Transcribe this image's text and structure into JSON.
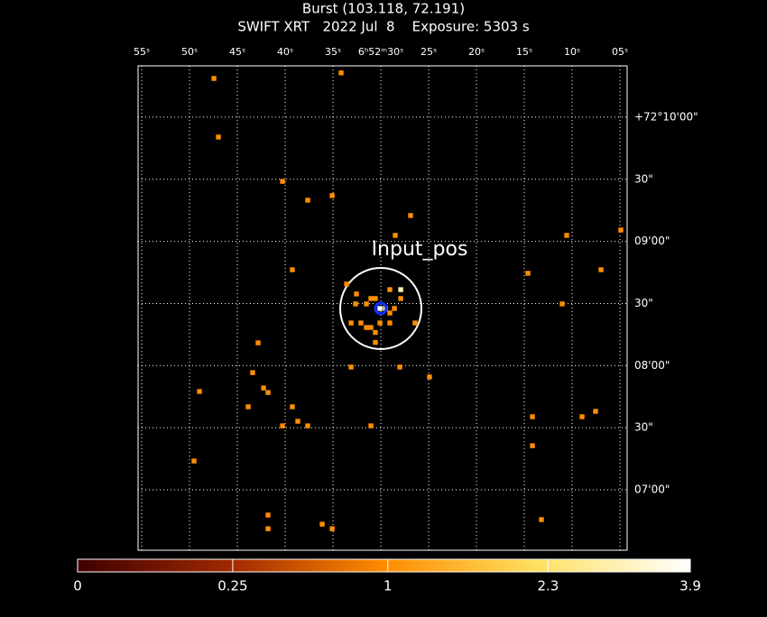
{
  "chart_data": {
    "type": "sky",
    "title": "Burst (103.118, 72.191)",
    "subtitle": "SWIFT XRT   2022 Jul  8    Exposure: 5303 s",
    "annotation": "Input_pos",
    "xlim": [
      55.38,
      4.25
    ],
    "ylim": [
      390.8,
      624.8
    ],
    "xticks": [
      {
        "value": 55,
        "label": "55ˢ"
      },
      {
        "value": 50,
        "label": "50ˢ"
      },
      {
        "value": 45,
        "label": "45ˢ"
      },
      {
        "value": 40,
        "label": "40ˢ"
      },
      {
        "value": 35,
        "label": "35ˢ"
      },
      {
        "value": 30,
        "label": "6ʰ52ᵐ30ˢ"
      },
      {
        "value": 25,
        "label": "25ˢ"
      },
      {
        "value": 20,
        "label": "20ˢ"
      },
      {
        "value": 15,
        "label": "15ˢ"
      },
      {
        "value": 10,
        "label": "10ˢ"
      },
      {
        "value": 5,
        "label": "05ˢ"
      }
    ],
    "yticks": [
      {
        "value": 600,
        "label": "+72°10'00\""
      },
      {
        "value": 570,
        "label": "30\""
      },
      {
        "value": 540,
        "label": "09'00\""
      },
      {
        "value": 510,
        "label": "30\""
      },
      {
        "value": 480,
        "label": "08'00\""
      },
      {
        "value": 450,
        "label": "30\""
      },
      {
        "value": 420,
        "label": "07'00\""
      }
    ],
    "grid": true,
    "x": [
      47.45,
      34.15,
      46.98,
      40.28,
      37.64,
      35.09,
      26.89,
      28.49,
      10.57,
      4.91,
      39.25,
      14.62,
      6.98,
      11.04,
      42.83,
      33.11,
      28.02,
      24.91,
      43.4,
      48.96,
      42.26,
      41.79,
      43.87,
      39.25,
      38.68,
      40.28,
      37.64,
      31.04,
      14.15,
      8.96,
      7.55,
      14.15,
      49.53,
      41.79,
      41.79,
      36.13,
      35.09,
      13.21,
      33.58,
      32.55,
      29.06,
      27.92,
      31.04,
      30.57,
      27.92,
      32.64,
      31.51,
      28.58,
      30.09,
      29.53,
      33.11,
      32.08,
      31.51,
      31.04,
      30.09,
      29.06,
      26.42,
      30.57,
      30.57,
      29.06
    ],
    "y": [
      618.7,
      621.4,
      590.4,
      569.0,
      559.9,
      562.1,
      552.5,
      542.9,
      542.9,
      545.5,
      526.3,
      524.6,
      526.3,
      509.8,
      491.0,
      479.3,
      479.3,
      474.5,
      476.6,
      467.5,
      469.2,
      467.0,
      460.1,
      460.1,
      453.1,
      450.9,
      450.9,
      450.9,
      455.3,
      455.3,
      457.9,
      441.3,
      433.9,
      407.8,
      401.2,
      403.4,
      401.2,
      405.6,
      519.4,
      514.6,
      516.7,
      516.7,
      512.4,
      512.4,
      512.4,
      509.8,
      509.8,
      507.6,
      507.6,
      507.6,
      500.6,
      500.6,
      498.4,
      498.4,
      500.6,
      500.6,
      500.6,
      496.0,
      491.2,
      505.4
    ],
    "counts": [
      1,
      1,
      1,
      1,
      1,
      1,
      1,
      1,
      1,
      1,
      1,
      1,
      1,
      1,
      1,
      1,
      1,
      1,
      1,
      1,
      1,
      1,
      1,
      1,
      1,
      1,
      1,
      1,
      1,
      1,
      1,
      1,
      1,
      1,
      1,
      1,
      1,
      1,
      1,
      1,
      1,
      3,
      1,
      1,
      1,
      1,
      1,
      1,
      3.9,
      2.3,
      1,
      1,
      1,
      1,
      1,
      1,
      1,
      1,
      1,
      1
    ],
    "colorbar": {
      "lim": [
        0,
        3.9
      ],
      "ticks": [
        0,
        0.25,
        1,
        2.3,
        3.9
      ],
      "scale": "sqrt",
      "colormap": [
        "#400000",
        "#a02800",
        "#ff8c00",
        "#ffe060",
        "#ffffff"
      ]
    }
  }
}
